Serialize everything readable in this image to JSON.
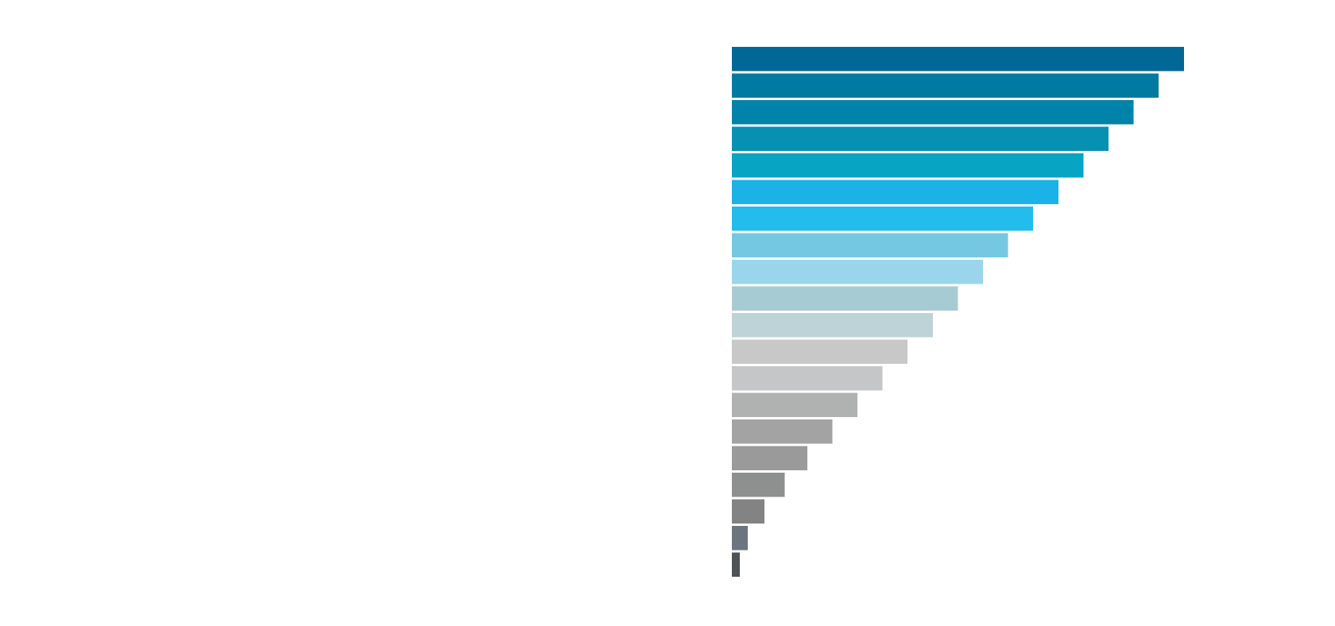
{
  "chart_data": {
    "type": "bar",
    "orientation": "horizontal",
    "values": [
      90,
      85,
      80,
      75,
      70,
      65,
      60,
      55,
      50,
      45,
      40,
      35,
      30,
      25,
      20,
      15,
      10.5,
      6.5,
      3.2,
      1.6
    ],
    "colors": [
      "#006796",
      "#007aa0",
      "#0083a8",
      "#0691b2",
      "#07a4c3",
      "#1bb2e7",
      "#22bced",
      "#75c8e2",
      "#9ad5eb",
      "#a7cbd3",
      "#bed3d8",
      "#c8c8c8",
      "#c4c6c7",
      "#b0b1b1",
      "#a3a3a3",
      "#9a9a9a",
      "#8e8f8f",
      "#838383",
      "#6c7480",
      "#4f5254"
    ],
    "xlim": [
      0,
      100
    ],
    "grid": false,
    "legend": "none"
  }
}
